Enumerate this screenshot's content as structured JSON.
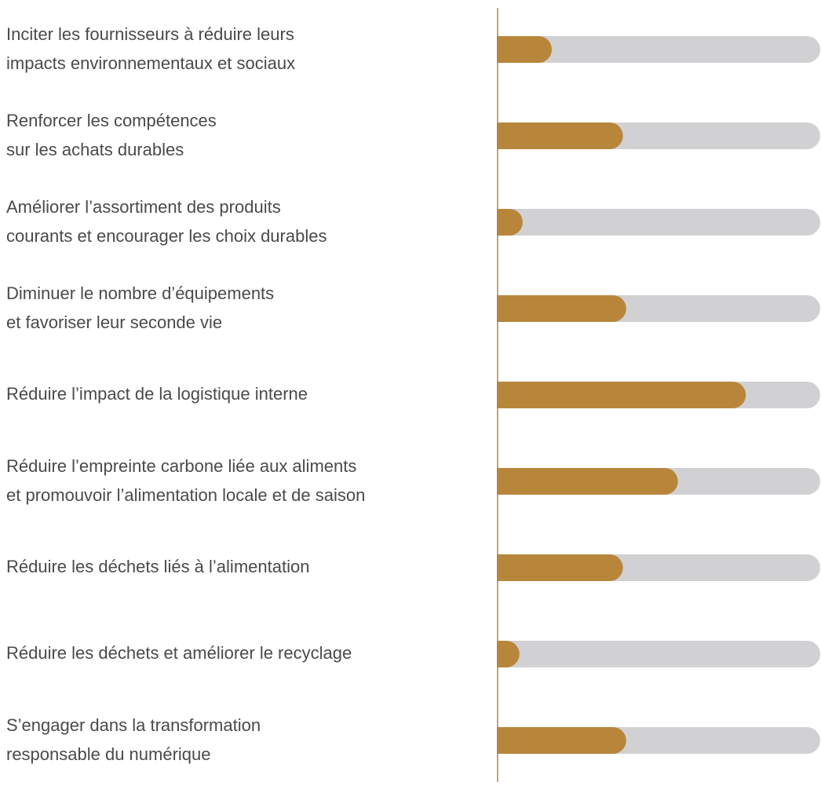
{
  "chart_data": {
    "type": "bar",
    "orientation": "horizontal",
    "categories": [
      [
        "Inciter les fournisseurs à réduire leurs",
        "impacts environnementaux et sociaux"
      ],
      [
        "Renforcer les compétences",
        "sur les achats durables"
      ],
      [
        "Améliorer l’assortiment des produits",
        "courants et encourager les choix durables"
      ],
      [
        "Diminuer le nombre d’équipements",
        "et favoriser leur seconde vie"
      ],
      [
        "Réduire l’impact de la logistique interne"
      ],
      [
        "Réduire l’empreinte carbone liée aux aliments",
        "et promouvoir l’alimentation locale et de saison"
      ],
      [
        "Réduire les déchets liés à l’alimentation"
      ],
      [
        "Réduire les déchets et améliorer le recyclage"
      ],
      [
        "S’engager dans la transformation",
        "responsable du numérique"
      ]
    ],
    "values": [
      17,
      39,
      8,
      40,
      77,
      56,
      39,
      7,
      40
    ],
    "xlim": [
      0,
      100
    ],
    "color": "#b8863b",
    "track_color": "#d1d1d3"
  }
}
